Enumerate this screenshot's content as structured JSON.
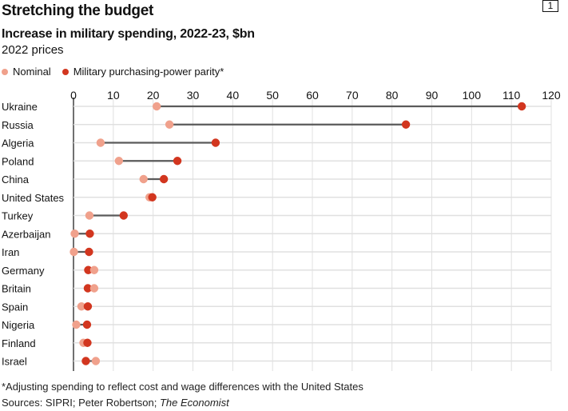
{
  "badge": "1",
  "chart_data": {
    "type": "dumbbell",
    "title": "Stretching the budget",
    "subtitle": "Increase in military spending, 2022-23, $bn",
    "units": "2022 prices",
    "xlabel": "",
    "ylabel": "",
    "xlim": [
      0,
      120
    ],
    "xticks": [
      0,
      10,
      20,
      30,
      40,
      50,
      60,
      70,
      80,
      90,
      100,
      110,
      120
    ],
    "grid": true,
    "legend_position": "top-left",
    "legend": [
      {
        "name": "Nominal",
        "color": "#f0a18c"
      },
      {
        "name": "Military purchasing-power parity*",
        "color": "#d2361f"
      }
    ],
    "categories": [
      "Ukraine",
      "Russia",
      "Algeria",
      "Poland",
      "China",
      "United States",
      "Turkey",
      "Azerbaijan",
      "Iran",
      "Germany",
      "Britain",
      "Spain",
      "Nigeria",
      "Finland",
      "Israel"
    ],
    "series": [
      {
        "name": "Nominal",
        "values": [
          20.9,
          24.1,
          6.8,
          11.4,
          17.6,
          19.1,
          4.0,
          0.3,
          0.1,
          5.2,
          5.2,
          2.0,
          0.7,
          2.5,
          5.6
        ]
      },
      {
        "name": "Military purchasing-power parity*",
        "values": [
          112.6,
          83.5,
          35.7,
          26.1,
          22.7,
          19.8,
          12.6,
          4.1,
          3.9,
          3.7,
          3.6,
          3.6,
          3.4,
          3.5,
          3.1
        ]
      }
    ],
    "footnote": "*Adjusting spending to reflect cost and wage differences with the United States",
    "sources_prefix": "Sources: SIPRI; Peter Robertson; ",
    "sources_italic": "The Economist"
  },
  "colors": {
    "nominal": "#f0a18c",
    "ppp": "#d2361f",
    "connector": "#5a5a5a",
    "grid": "#e0e0e0",
    "axis": "#121212"
  }
}
